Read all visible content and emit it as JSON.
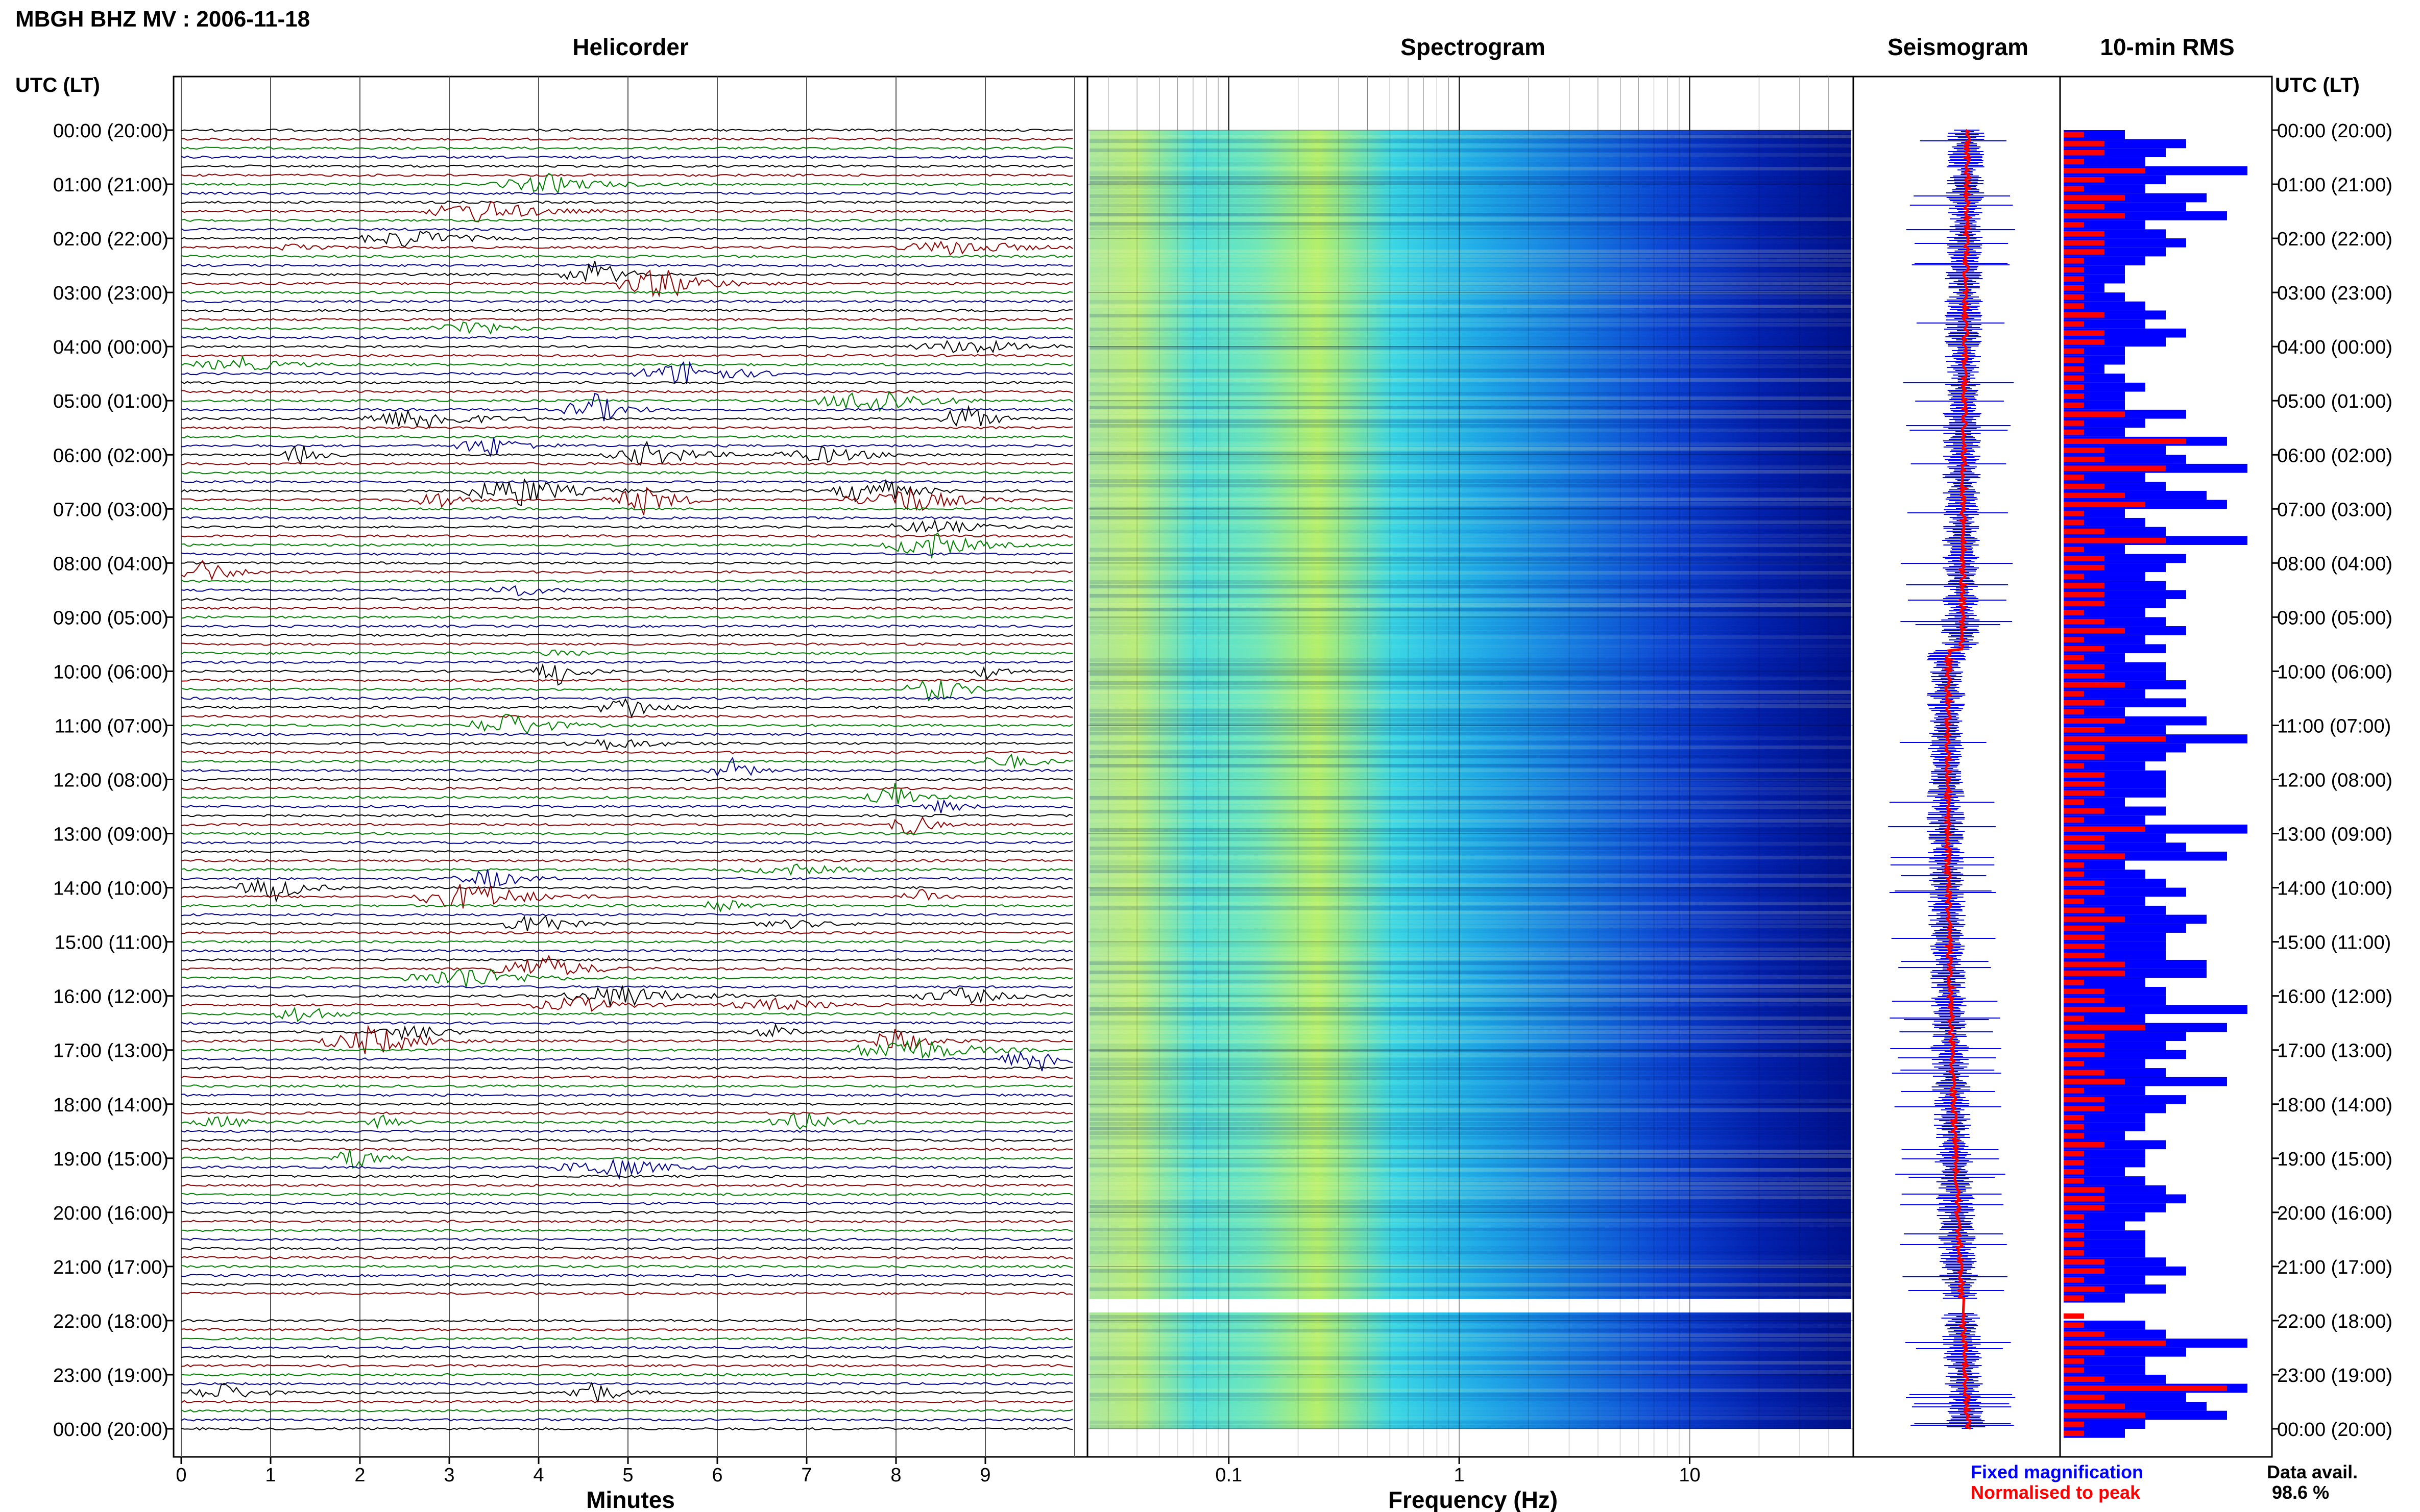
{
  "page_title": "MBGH BHZ MV : 2006-11-18",
  "panels": {
    "helicorder": "Helicorder",
    "spectrogram": "Spectrogram",
    "seismogram": "Seismogram",
    "rms": "10-min RMS"
  },
  "axis_header_left": "UTC (LT)",
  "axis_header_right": "UTC (LT)",
  "xlabels": {
    "helicorder": "Minutes",
    "spectrogram": "Frequency (Hz)"
  },
  "legend": {
    "fixed": "Fixed magnification",
    "normalised": "Normalised to peak",
    "fixed_color": "#0000ff",
    "normalised_color": "#ff0000"
  },
  "data_avail": {
    "label": "Data avail.",
    "value": "98.6 %"
  },
  "colors": {
    "trace_cycle": [
      "#000000",
      "#8b0000",
      "#008000",
      "#00008b"
    ],
    "rms_fixed": "#0000ff",
    "rms_normalised": "#ff0000"
  },
  "chart_data": {
    "type": "heatmap",
    "title": "MBGH BHZ MV : 2006-11-18",
    "time_labels": [
      "00:00 (20:00)",
      "01:00 (21:00)",
      "02:00 (22:00)",
      "03:00 (23:00)",
      "04:00 (00:00)",
      "05:00 (01:00)",
      "06:00 (02:00)",
      "07:00 (03:00)",
      "08:00 (04:00)",
      "09:00 (05:00)",
      "10:00 (06:00)",
      "11:00 (07:00)",
      "12:00 (08:00)",
      "13:00 (09:00)",
      "14:00 (10:00)",
      "15:00 (11:00)",
      "16:00 (12:00)",
      "17:00 (13:00)",
      "18:00 (14:00)",
      "19:00 (15:00)",
      "20:00 (16:00)",
      "21:00 (17:00)",
      "22:00 (18:00)",
      "23:00 (19:00)",
      "00:00 (20:00)"
    ],
    "helicorder_x_ticks": [
      0,
      1,
      2,
      3,
      4,
      5,
      6,
      7,
      8,
      9
    ],
    "helicorder_xlim": [
      0,
      10
    ],
    "helicorder_xlabel": "Minutes",
    "spectrogram_x_ticks": [
      "0.1",
      "1",
      "10"
    ],
    "spectrogram_xlim_hz": [
      0.025,
      50
    ],
    "spectrogram_scale": "log",
    "spectrogram_xlabel": "Frequency (Hz)",
    "data_gap_hours": [
      21.6,
      21.85
    ],
    "rms_fixed_relative": [
      0.3,
      0.6,
      0.5,
      0.4,
      0.9,
      0.5,
      0.4,
      0.7,
      0.6,
      0.8,
      0.4,
      0.5,
      0.6,
      0.5,
      0.4,
      0.3,
      0.3,
      0.2,
      0.3,
      0.4,
      0.5,
      0.4,
      0.6,
      0.5,
      0.3,
      0.3,
      0.2,
      0.3,
      0.4,
      0.3,
      0.3,
      0.6,
      0.4,
      0.3,
      0.8,
      0.5,
      0.6,
      0.9,
      0.4,
      0.5,
      0.7,
      0.8,
      0.3,
      0.4,
      0.5,
      0.9,
      0.3,
      0.6,
      0.5,
      0.4,
      0.5,
      0.6,
      0.5,
      0.4,
      0.5,
      0.6,
      0.4,
      0.5,
      0.3,
      0.5,
      0.5,
      0.6,
      0.4,
      0.6,
      0.3,
      0.7,
      0.5,
      0.9,
      0.6,
      0.5,
      0.4,
      0.5,
      0.5,
      0.5,
      0.3,
      0.5,
      0.4,
      0.9,
      0.5,
      0.6,
      0.8,
      0.3,
      0.4,
      0.5,
      0.6,
      0.4,
      0.5,
      0.7,
      0.6,
      0.5,
      0.5,
      0.5,
      0.7,
      0.7,
      0.4,
      0.5,
      0.5,
      0.9,
      0.4,
      0.8,
      0.6,
      0.5,
      0.6,
      0.4,
      0.5,
      0.8,
      0.4,
      0.6,
      0.5,
      0.4,
      0.4,
      0.3,
      0.5,
      0.4,
      0.4,
      0.3,
      0.4,
      0.5,
      0.6,
      0.5,
      0.4,
      0.3,
      0.4,
      0.4,
      0.4,
      0.5,
      0.6,
      0.4,
      0.5,
      0.3,
      0.4,
      0.3,
      0.4,
      0.5,
      0.9,
      0.6,
      0.4,
      0.4,
      0.5,
      0.9,
      0.6,
      0.7,
      0.8,
      0.4,
      0.3
    ],
    "rms_normalised_relative": [
      0.1,
      0.2,
      0.2,
      0.1,
      0.4,
      0.2,
      0.1,
      0.3,
      0.2,
      0.3,
      0.1,
      0.2,
      0.2,
      0.2,
      0.1,
      0.1,
      0.1,
      0.1,
      0.1,
      0.1,
      0.2,
      0.1,
      0.2,
      0.2,
      0.1,
      0.1,
      0.1,
      0.1,
      0.1,
      0.1,
      0.1,
      0.3,
      0.1,
      0.1,
      0.6,
      0.2,
      0.2,
      0.5,
      0.1,
      0.2,
      0.3,
      0.4,
      0.1,
      0.1,
      0.2,
      0.5,
      0.1,
      0.2,
      0.2,
      0.1,
      0.2,
      0.2,
      0.2,
      0.1,
      0.2,
      0.3,
      0.1,
      0.2,
      0.1,
      0.2,
      0.2,
      0.3,
      0.1,
      0.2,
      0.1,
      0.3,
      0.2,
      0.5,
      0.2,
      0.2,
      0.1,
      0.2,
      0.2,
      0.2,
      0.1,
      0.2,
      0.1,
      0.4,
      0.2,
      0.2,
      0.3,
      0.1,
      0.1,
      0.2,
      0.2,
      0.1,
      0.2,
      0.3,
      0.2,
      0.2,
      0.2,
      0.2,
      0.3,
      0.3,
      0.1,
      0.2,
      0.2,
      0.3,
      0.1,
      0.4,
      0.2,
      0.2,
      0.2,
      0.1,
      0.2,
      0.3,
      0.1,
      0.2,
      0.2,
      0.1,
      0.1,
      0.1,
      0.2,
      0.1,
      0.1,
      0.1,
      0.1,
      0.2,
      0.2,
      0.2,
      0.1,
      0.1,
      0.1,
      0.1,
      0.1,
      0.2,
      0.2,
      0.1,
      0.2,
      0.1,
      0.1,
      0.1,
      0.1,
      0.2,
      0.5,
      0.2,
      0.1,
      0.1,
      0.2,
      0.8,
      0.2,
      0.3,
      0.4,
      0.1,
      0.1
    ]
  }
}
